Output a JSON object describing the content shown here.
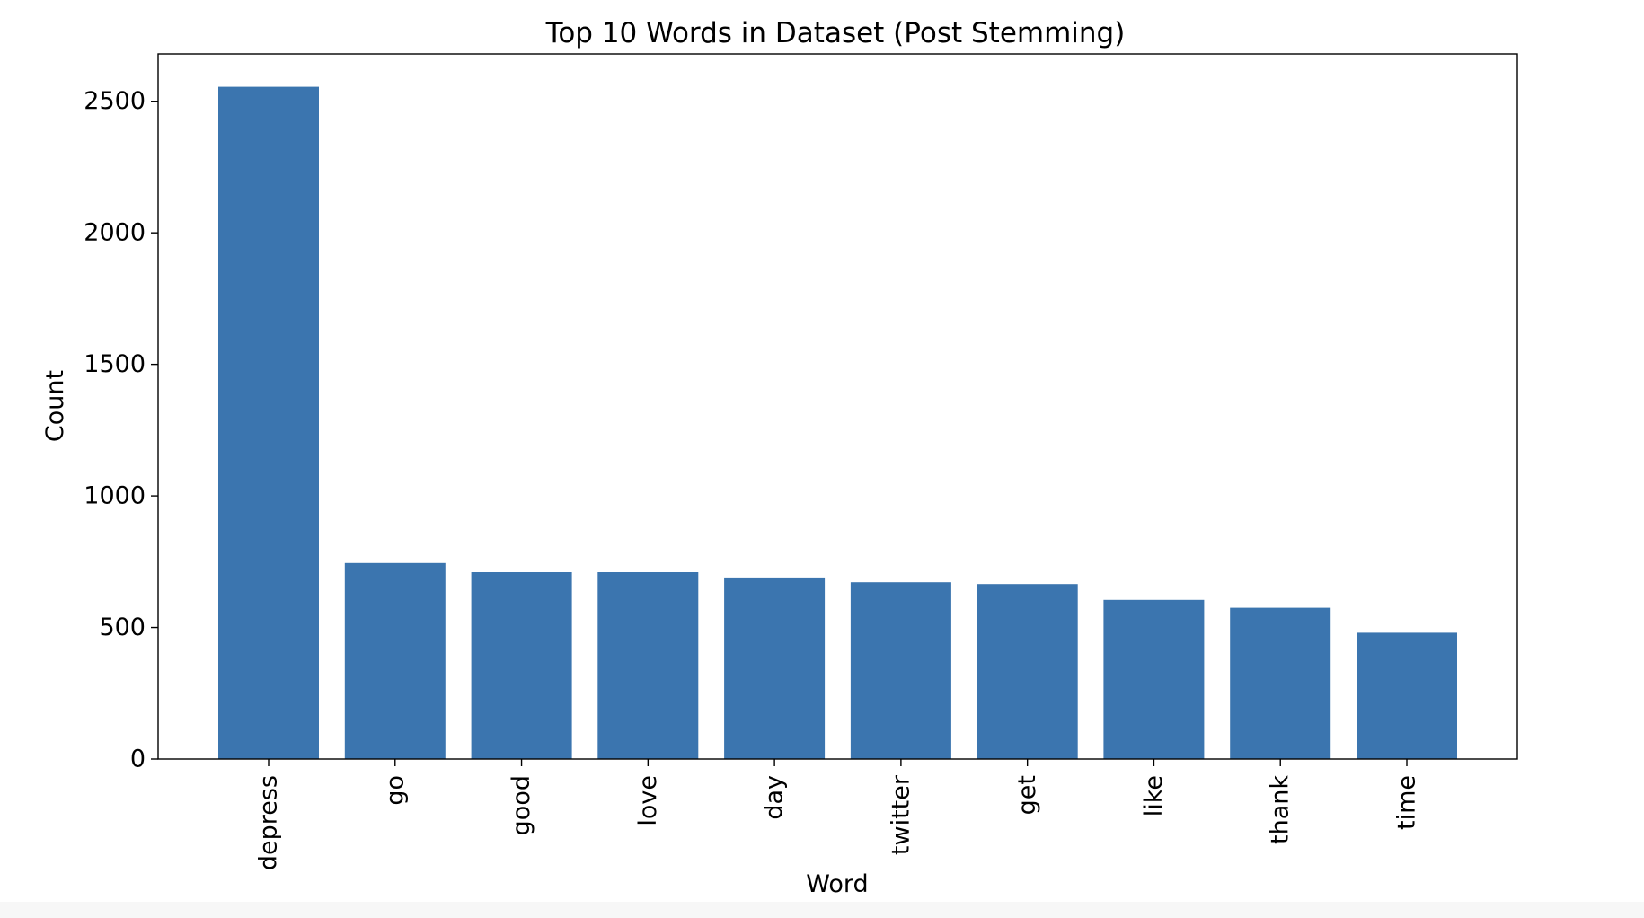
{
  "chart_data": {
    "type": "bar",
    "title": "Top 10 Words in Dataset (Post Stemming)",
    "xlabel": "Word",
    "ylabel": "Count",
    "categories": [
      "depress",
      "go",
      "good",
      "love",
      "day",
      "twitter",
      "get",
      "like",
      "thank",
      "time"
    ],
    "values": [
      2555,
      745,
      710,
      710,
      690,
      672,
      665,
      605,
      575,
      480
    ],
    "ylim": [
      0,
      2680
    ],
    "yticks": [
      0,
      500,
      1000,
      1500,
      2000,
      2500
    ],
    "bar_color": "#3b75af",
    "grid": false,
    "legend": "none"
  }
}
